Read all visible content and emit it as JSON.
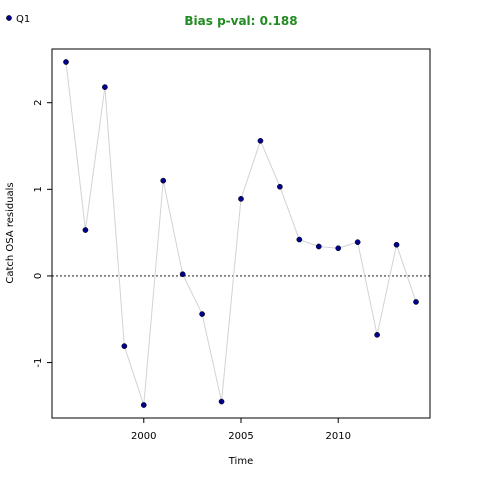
{
  "chart_data": {
    "type": "line",
    "title": "Bias p-val: 0.188",
    "x_label": "Time",
    "y_label": "Catch OSA residuals",
    "x": [
      1996,
      1997,
      1998,
      1999,
      2000,
      2001,
      2002,
      2003,
      2004,
      2005,
      2006,
      2007,
      2008,
      2009,
      2010,
      2011,
      2012,
      2013,
      2014
    ],
    "series": [
      {
        "name": "Q1",
        "color": "#00008b",
        "line_color": "#d3d3d3",
        "values": [
          2.47,
          0.53,
          2.18,
          -0.81,
          -1.49,
          1.1,
          0.02,
          -0.44,
          -1.45,
          0.89,
          1.56,
          1.03,
          0.42,
          0.34,
          0.32,
          0.39,
          -0.68,
          0.36,
          -0.3
        ]
      }
    ],
    "xlim": [
      1995.28,
      2014.72
    ],
    "xticks": [
      2000,
      2005,
      2010
    ],
    "ylim": [
      -1.64,
      2.62
    ],
    "yticks": [
      -1,
      0,
      1,
      2
    ],
    "reference_line": 0,
    "legend": "top-left",
    "grid": false
  }
}
